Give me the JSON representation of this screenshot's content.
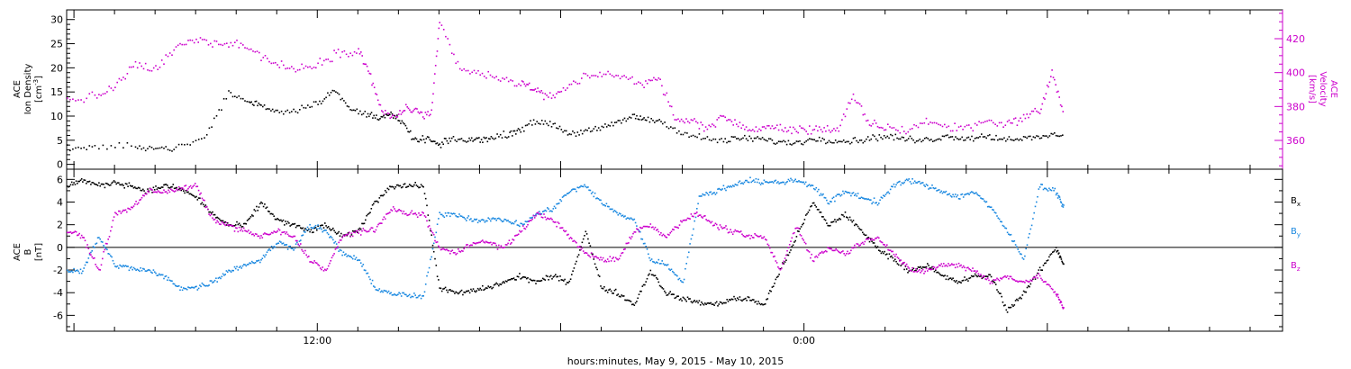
{
  "footer": {
    "caption": "hours:minutes, May  9, 2015 - May 10, 2015"
  },
  "chart_data": [
    {
      "type": "scatter",
      "panel": "top",
      "left_axis_label": [
        "ACE",
        "Ion Density",
        "[cm^-3]"
      ],
      "right_axis_label": [
        "ACE",
        "Velocity",
        "[km/s]"
      ],
      "y_left_ticks": [
        0,
        5,
        10,
        15,
        20,
        25,
        30
      ],
      "ylim_left": [
        -1,
        32
      ],
      "y_right_ticks": [
        360,
        380,
        400,
        420
      ],
      "ylim_right": [
        343,
        437
      ],
      "x_unit": "hours since 2015-05-09 00:00",
      "xlim": [
        5.82,
        35.8
      ],
      "x_tick_labels": [
        {
          "x": 12,
          "label": "12:00"
        },
        {
          "x": 24,
          "label": "0:00"
        }
      ],
      "series": [
        {
          "name": "Ion Density",
          "axis": "left",
          "color": "#000000",
          "x": [
            5.82,
            6.5,
            7.5,
            8.0,
            8.5,
            9.2,
            9.8,
            10.3,
            10.6,
            11.0,
            11.5,
            12.0,
            12.4,
            12.8,
            13.2,
            13.5,
            13.8,
            14.1,
            14.4,
            14.7,
            15.0,
            15.3,
            15.7,
            16.0,
            16.3,
            16.7,
            17.0,
            17.4,
            17.8,
            18.2,
            18.6,
            19.0,
            19.4,
            19.8,
            20.1,
            20.5,
            21.0,
            21.5,
            22.0,
            22.4,
            22.8,
            23.2,
            23.6,
            24.0,
            24.4,
            24.8,
            25.2,
            25.6,
            26.0,
            26.4,
            26.8,
            27.2,
            27.6,
            28.0,
            28.4,
            28.8,
            29.2,
            29.6,
            30.0,
            30.4
          ],
          "y": [
            3.5,
            3.5,
            4.0,
            3.5,
            3.5,
            5.5,
            15.0,
            13.0,
            12.5,
            11.0,
            11.5,
            13.0,
            15.5,
            11.5,
            10.5,
            10.0,
            10.5,
            8.5,
            5.0,
            5.5,
            4.0,
            5.5,
            5.0,
            5.5,
            5.5,
            6.5,
            7.5,
            9.0,
            8.5,
            6.5,
            7.0,
            7.5,
            9.0,
            10.0,
            9.5,
            9.0,
            6.5,
            5.5,
            5.0,
            5.5,
            5.5,
            5.0,
            4.5,
            5.0,
            5.5,
            5.0,
            5.0,
            5.5,
            6.0,
            5.5,
            5.0,
            5.5,
            6.0,
            5.5,
            6.0,
            5.5,
            5.5,
            5.5,
            6.0,
            6.5
          ]
        },
        {
          "name": "Velocity",
          "axis": "right",
          "color": "#cc00cc",
          "x": [
            5.82,
            6.5,
            7.0,
            7.5,
            8.0,
            8.5,
            9.0,
            9.5,
            10.0,
            10.5,
            11.0,
            11.5,
            12.0,
            12.5,
            13.0,
            13.3,
            13.6,
            13.9,
            14.2,
            14.5,
            14.8,
            15.0,
            15.5,
            16.0,
            16.5,
            17.0,
            17.3,
            17.6,
            18.0,
            18.5,
            19.0,
            19.5,
            20.0,
            20.4,
            20.8,
            21.2,
            21.6,
            22.0,
            22.4,
            22.8,
            23.2,
            23.6,
            24.0,
            24.4,
            24.8,
            25.2,
            25.6,
            26.0,
            26.5,
            27.0,
            27.5,
            28.0,
            28.5,
            29.0,
            29.4,
            29.8,
            30.1,
            30.4
          ],
          "y": [
            384,
            386,
            392,
            405,
            402,
            415,
            420,
            418,
            418,
            412,
            405,
            402,
            406,
            412,
            414,
            398,
            376,
            374,
            380,
            376,
            376,
            430,
            402,
            400,
            396,
            394,
            392,
            385,
            390,
            397,
            400,
            398,
            394,
            398,
            372,
            372,
            368,
            375,
            368,
            367,
            368,
            367,
            366,
            368,
            366,
            386,
            370,
            368,
            366,
            372,
            368,
            368,
            372,
            370,
            374,
            378,
            400,
            376
          ]
        }
      ]
    },
    {
      "type": "scatter",
      "panel": "bottom",
      "left_axis_label": [
        "ACE",
        "B",
        "[nT]"
      ],
      "y_ticks": [
        -6,
        -4,
        -2,
        0,
        2,
        4,
        6
      ],
      "ylim": [
        -7.4,
        6.9
      ],
      "zero_line": true,
      "x_unit": "hours since 2015-05-09 00:00",
      "xlim": [
        5.82,
        35.8
      ],
      "x_tick_labels": [
        {
          "x": 12,
          "label": "12:00"
        },
        {
          "x": 24,
          "label": "0:00"
        }
      ],
      "legend_placement": "right",
      "series": [
        {
          "name": "B_x",
          "color": "#000000",
          "x": [
            5.82,
            6.2,
            6.6,
            7.0,
            7.4,
            7.8,
            8.2,
            8.6,
            9.0,
            9.4,
            9.8,
            10.2,
            10.6,
            11.0,
            11.4,
            11.8,
            12.2,
            12.6,
            13.0,
            13.4,
            13.8,
            14.2,
            14.6,
            15.0,
            15.4,
            15.8,
            16.2,
            16.6,
            17.0,
            17.4,
            17.8,
            18.2,
            18.6,
            19.0,
            19.4,
            19.8,
            20.2,
            20.6,
            21.0,
            21.4,
            21.8,
            22.2,
            22.6,
            23.0,
            23.4,
            23.8,
            24.2,
            24.6,
            25.0,
            25.4,
            25.8,
            26.2,
            26.6,
            27.0,
            27.4,
            27.8,
            28.2,
            28.6,
            29.0,
            29.4,
            29.8,
            30.2,
            30.4
          ],
          "y": [
            5.5,
            6.0,
            5.5,
            5.8,
            5.5,
            5.0,
            5.5,
            5.2,
            4.5,
            3.0,
            2.0,
            2.0,
            4.0,
            2.5,
            2.0,
            1.5,
            2.0,
            1.0,
            1.5,
            4.0,
            5.5,
            5.5,
            5.5,
            -3.5,
            -4.0,
            -3.8,
            -3.5,
            -3.0,
            -2.5,
            -3.0,
            -2.5,
            -3.0,
            1.5,
            -3.5,
            -4.0,
            -5.0,
            -2.0,
            -4.0,
            -4.5,
            -4.8,
            -5.0,
            -4.5,
            -4.5,
            -5.0,
            -2.0,
            1.0,
            4.0,
            2.0,
            3.0,
            1.5,
            0.0,
            -1.0,
            -2.0,
            -1.5,
            -2.5,
            -3.0,
            -2.5,
            -2.5,
            -5.5,
            -4.0,
            -2.0,
            0.0,
            -1.5
          ]
        },
        {
          "name": "B_y",
          "color": "#1a88e0",
          "x": [
            5.82,
            6.2,
            6.6,
            7.0,
            7.4,
            7.8,
            8.2,
            8.6,
            9.0,
            9.4,
            9.8,
            10.2,
            10.6,
            11.0,
            11.4,
            11.8,
            12.2,
            12.6,
            13.0,
            13.4,
            13.8,
            14.2,
            14.6,
            15.0,
            15.4,
            15.8,
            16.2,
            16.6,
            17.0,
            17.4,
            17.8,
            18.2,
            18.6,
            19.0,
            19.4,
            19.8,
            20.2,
            20.6,
            21.0,
            21.4,
            21.8,
            22.2,
            22.6,
            23.0,
            23.4,
            23.8,
            24.2,
            24.6,
            25.0,
            25.4,
            25.8,
            26.2,
            26.6,
            27.0,
            27.4,
            27.8,
            28.2,
            28.6,
            29.0,
            29.4,
            29.8,
            30.2,
            30.4
          ],
          "y": [
            -2.0,
            -2.0,
            1.0,
            -1.5,
            -1.8,
            -2.0,
            -2.5,
            -3.5,
            -3.5,
            -3.0,
            -2.0,
            -1.5,
            -1.0,
            0.5,
            0.0,
            2.0,
            1.5,
            -0.5,
            -1.0,
            -3.5,
            -4.0,
            -4.2,
            -4.3,
            3.0,
            3.0,
            2.5,
            2.5,
            2.5,
            2.0,
            3.0,
            3.5,
            5.0,
            5.5,
            4.0,
            3.0,
            2.5,
            -1.0,
            -1.5,
            -3.0,
            4.5,
            5.0,
            5.5,
            6.0,
            5.8,
            5.8,
            6.0,
            5.5,
            4.0,
            5.0,
            4.5,
            4.0,
            5.5,
            6.0,
            5.5,
            5.0,
            4.5,
            5.0,
            3.5,
            1.5,
            -1.0,
            5.5,
            5.0,
            3.5
          ]
        },
        {
          "name": "B_z",
          "color": "#cc00cc",
          "x": [
            5.82,
            6.2,
            6.6,
            7.0,
            7.4,
            7.8,
            8.2,
            8.6,
            9.0,
            9.4,
            9.8,
            10.2,
            10.6,
            11.0,
            11.4,
            11.8,
            12.2,
            12.6,
            13.0,
            13.4,
            13.8,
            14.2,
            14.6,
            15.0,
            15.4,
            15.8,
            16.2,
            16.6,
            17.0,
            17.4,
            17.8,
            18.2,
            18.6,
            19.0,
            19.4,
            19.8,
            20.2,
            20.6,
            21.0,
            21.4,
            21.8,
            22.2,
            22.6,
            23.0,
            23.4,
            23.8,
            24.2,
            24.6,
            25.0,
            25.4,
            25.8,
            26.2,
            26.6,
            27.0,
            27.4,
            27.8,
            28.2,
            28.6,
            29.0,
            29.4,
            29.8,
            30.2,
            30.4
          ],
          "y": [
            1.5,
            1.0,
            -2.0,
            3.0,
            3.5,
            5.0,
            5.0,
            5.2,
            5.5,
            2.5,
            2.0,
            1.5,
            1.0,
            1.5,
            1.0,
            -1.0,
            -2.0,
            1.0,
            1.5,
            1.5,
            3.5,
            3.0,
            3.0,
            0.0,
            -0.5,
            0.5,
            0.5,
            0.0,
            1.5,
            3.0,
            2.5,
            1.0,
            -0.5,
            -1.0,
            -1.0,
            1.5,
            2.0,
            1.0,
            2.5,
            3.0,
            2.0,
            1.5,
            1.0,
            1.0,
            -2.0,
            2.0,
            -1.0,
            0.0,
            -0.5,
            0.5,
            1.0,
            -0.5,
            -2.0,
            -2.0,
            -1.5,
            -1.5,
            -2.0,
            -3.0,
            -2.5,
            -3.0,
            -2.5,
            -4.0,
            -5.5
          ]
        }
      ]
    }
  ]
}
